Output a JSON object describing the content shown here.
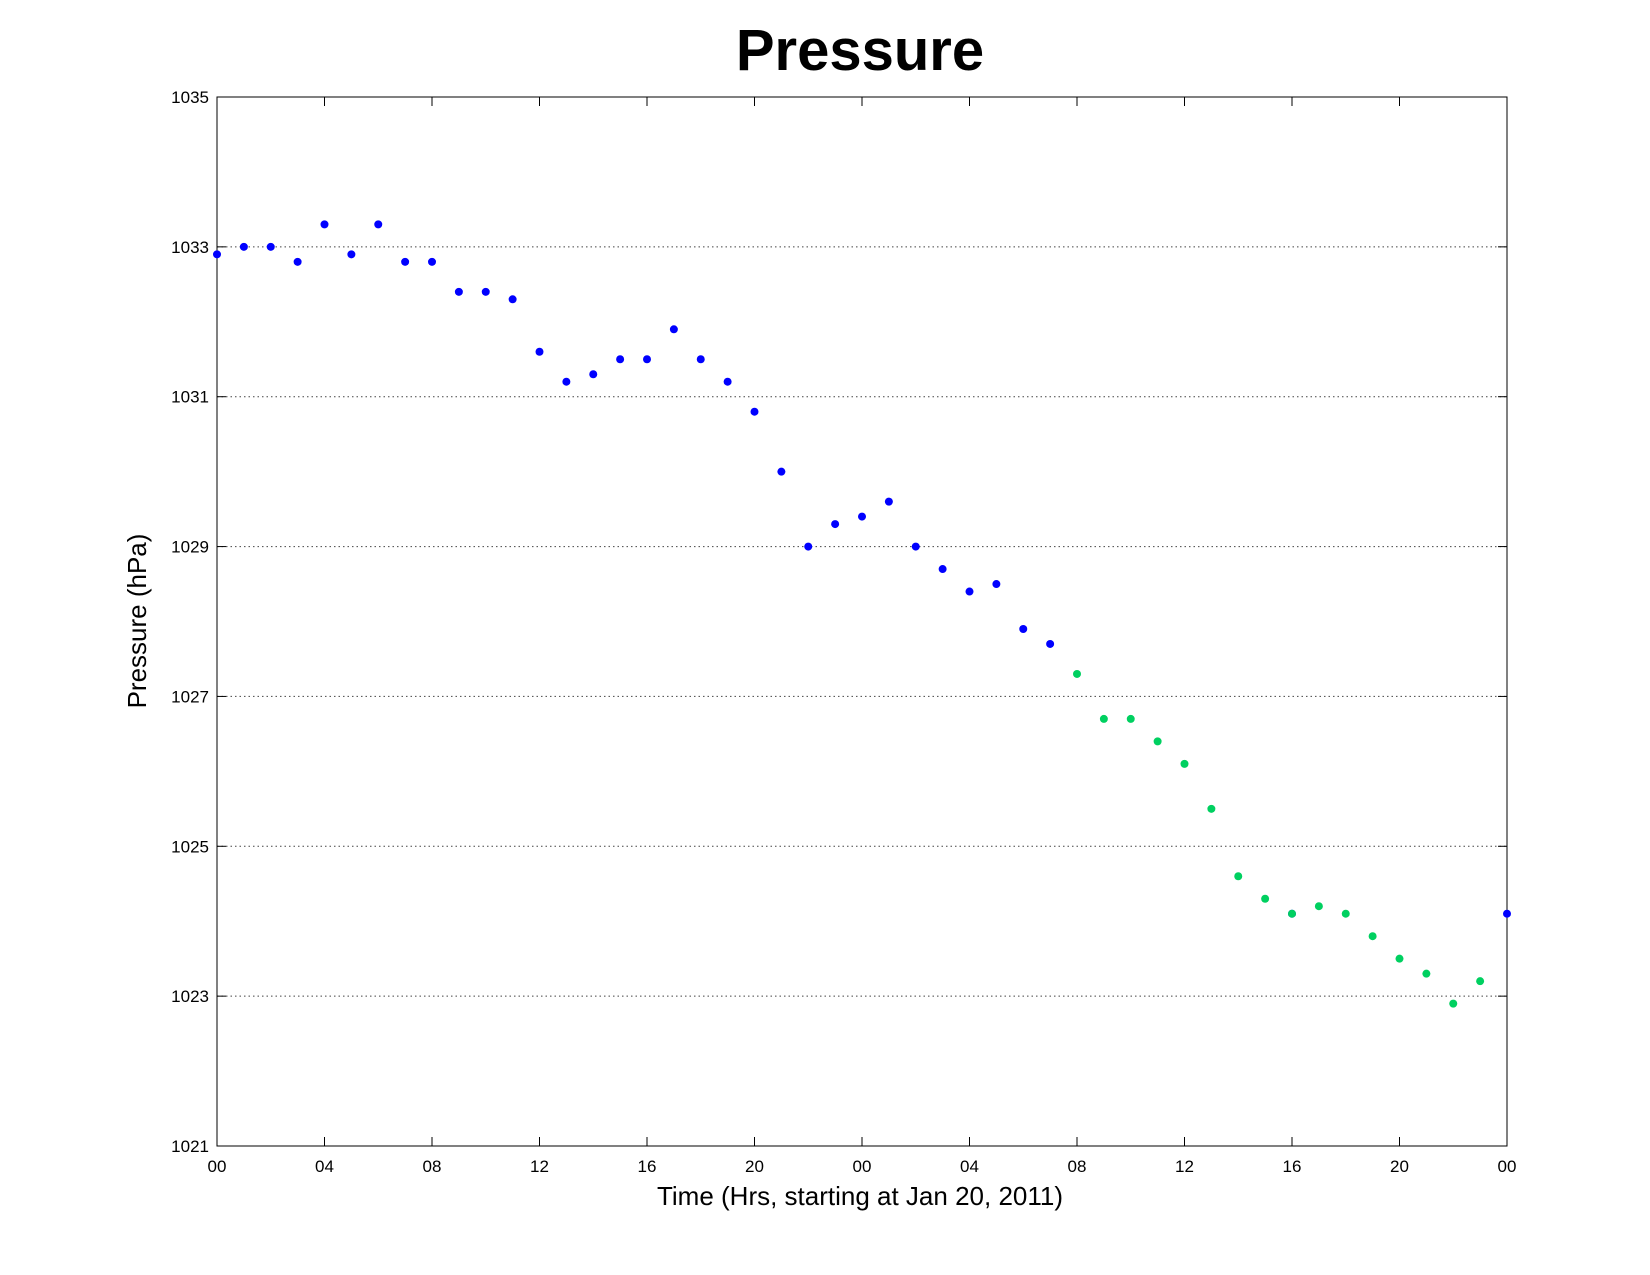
{
  "chart_data": {
    "type": "scatter",
    "title": "Pressure",
    "xlabel": "Time (Hrs, starting at Jan 20, 2011)",
    "ylabel": "Pressure (hPa)",
    "xlim": [
      0,
      48
    ],
    "ylim": [
      1021,
      1035
    ],
    "x_ticks": [
      0,
      4,
      8,
      12,
      16,
      20,
      24,
      28,
      32,
      36,
      40,
      44,
      48
    ],
    "x_tick_labels": [
      "00",
      "04",
      "08",
      "12",
      "16",
      "20",
      "00",
      "04",
      "08",
      "12",
      "16",
      "20",
      "00"
    ],
    "y_ticks": [
      1021,
      1023,
      1025,
      1027,
      1029,
      1031,
      1033,
      1035
    ],
    "y_tick_labels": [
      "1021",
      "1023",
      "1025",
      "1027",
      "1029",
      "1031",
      "1033",
      "1035"
    ],
    "grid": "horizontal dotted",
    "series": [
      {
        "color": "#0000ff",
        "x": [
          0,
          1,
          2,
          3,
          4,
          5,
          6,
          7,
          8,
          9,
          10,
          11,
          12,
          13,
          14,
          15,
          16,
          17,
          18,
          19,
          20,
          21,
          22,
          23,
          24,
          25,
          26,
          27,
          28,
          29,
          30,
          31,
          40,
          48
        ],
        "y": [
          1032.9,
          1033.0,
          1033.0,
          1032.8,
          1033.3,
          1032.9,
          1033.3,
          1032.8,
          1032.8,
          1032.4,
          1032.4,
          1032.3,
          1031.6,
          1031.2,
          1031.3,
          1031.5,
          1031.5,
          1031.9,
          1031.5,
          1031.2,
          1030.8,
          1030.0,
          1029.0,
          1029.3,
          1029.4,
          1029.6,
          1029.0,
          1028.7,
          1028.4,
          1028.5,
          1027.9,
          1027.7,
          1024.1,
          1024.1
        ]
      },
      {
        "color": "#00d060",
        "x": [
          32,
          33,
          34,
          35,
          36,
          37,
          38,
          39,
          40,
          41,
          42,
          43,
          44,
          45,
          46,
          47
        ],
        "y": [
          1027.3,
          1026.7,
          1026.7,
          1026.4,
          1026.1,
          1025.5,
          1024.6,
          1024.3,
          1024.1,
          1024.2,
          1024.1,
          1023.8,
          1023.5,
          1023.3,
          1022.9,
          1023.2
        ]
      }
    ]
  }
}
